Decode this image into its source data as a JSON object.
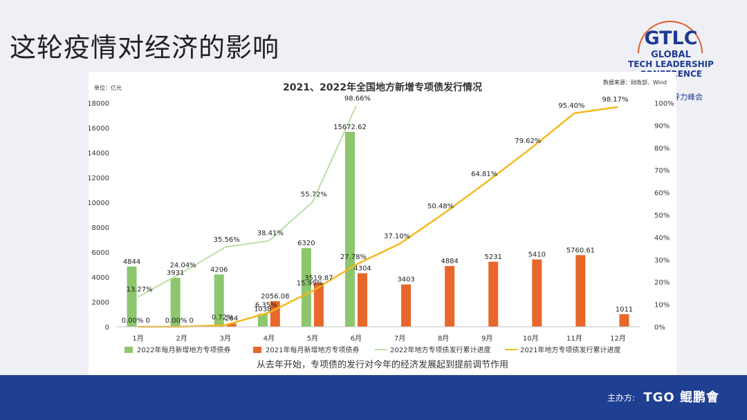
{
  "slide": {
    "title": "这轮疫情对经济的影响",
    "footer_label": "主办方:",
    "footer_brand": "TGO 鲲鹏會"
  },
  "logo": {
    "gtlc": "GTLC",
    "line1": "GLOBAL",
    "line2": "TECH LEADERSHIP",
    "line3": "CONFERENCE",
    "sub": "导力峰会"
  },
  "colors": {
    "bar2022": "#8cc66d",
    "bar2021": "#e8672a",
    "line2022": "#b9dfa6",
    "line2021": "#f4b81c",
    "footer": "#1f3f93"
  },
  "chart_data": {
    "type": "bar",
    "title": "2021、2022年全国地方新增专项债发行情况",
    "unit_label": "单位：亿元",
    "source_label": "数据来源：财政部、Wind",
    "caption": "从去年开始，专项债的发行对今年的经济发展起到提前调节作用",
    "categories": [
      "1月",
      "2月",
      "3月",
      "4月",
      "5月",
      "6月",
      "7月",
      "8月",
      "9月",
      "10月",
      "11月",
      "12月"
    ],
    "ylim": [
      0,
      18000
    ],
    "yticks": [
      "0",
      "2000",
      "4000",
      "6000",
      "8000",
      "10000",
      "12000",
      "14000",
      "16000",
      "18000"
    ],
    "y2lim": [
      0,
      100
    ],
    "y2ticks": [
      "0%",
      "10%",
      "20%",
      "30%",
      "40%",
      "50%",
      "60%",
      "70%",
      "80%",
      "90%",
      "100%"
    ],
    "series": [
      {
        "name": "2022年每月新增地方专项债券",
        "kind": "bar",
        "axis": "left",
        "values": [
          4844,
          3931,
          4206,
          1038,
          6320,
          15672.62,
          null,
          null,
          null,
          null,
          null,
          null
        ],
        "labels": [
          "4844",
          "3931",
          "4206",
          "1038",
          "6320",
          "15672.62",
          "",
          "",
          "",
          "",
          "",
          ""
        ]
      },
      {
        "name": "2021年每月新增地方专项债券",
        "kind": "bar",
        "axis": "left",
        "values": [
          0,
          0,
          264,
          2056.08,
          3519.87,
          4304,
          3403,
          4884,
          5231,
          5410,
          5760.61,
          1011
        ],
        "labels": [
          "0",
          "0",
          "264",
          "2056.08",
          "3519.87",
          "4304",
          "3403",
          "4884",
          "5231",
          "5410",
          "5760.61",
          "1011"
        ]
      },
      {
        "name": "2022年地方专项债发行累计进度",
        "kind": "line",
        "axis": "right",
        "values": [
          13.27,
          24.04,
          35.56,
          38.41,
          55.72,
          98.66,
          null,
          null,
          null,
          null,
          null,
          null
        ],
        "labels": [
          "13.27%",
          "24.04%",
          "35.56%",
          "38.41%",
          "55.72%",
          "98.66%",
          "",
          "",
          "",
          "",
          "",
          ""
        ]
      },
      {
        "name": "2021年地方专项债发行累计进度",
        "kind": "line",
        "axis": "right",
        "values": [
          0.0,
          0.0,
          0.72,
          6.35,
          15.99,
          27.78,
          37.1,
          50.48,
          64.81,
          79.62,
          95.4,
          98.17
        ],
        "labels": [
          "0.00%",
          "0.00%",
          "0.72%",
          "6.35%",
          "15.99%",
          "27.78%",
          "37.10%",
          "50.48%",
          "64.81%",
          "79.62%",
          "95.40%",
          "98.17%"
        ]
      }
    ]
  }
}
